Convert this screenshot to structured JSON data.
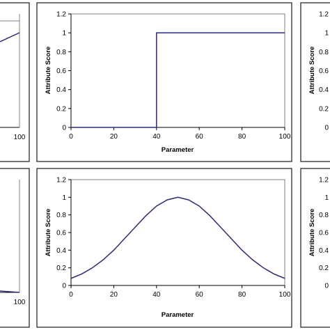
{
  "chart_data": [
    {
      "panel": "top-left (cropped)",
      "type": "line",
      "xlabel": "",
      "ylabel": "",
      "x_ticks": [
        "100"
      ],
      "series": [
        {
          "x": [
            80,
            100
          ],
          "y": [
            0.9,
            1.0
          ]
        }
      ]
    },
    {
      "panel": "top-middle",
      "type": "line",
      "xlabel": "Parameter",
      "ylabel": "Attribute Score",
      "xlim": [
        0,
        100
      ],
      "ylim": [
        0,
        1.2
      ],
      "x_ticks": [
        "0",
        "20",
        "40",
        "60",
        "80",
        "100"
      ],
      "y_ticks": [
        "0",
        "0.2",
        "0.4",
        "0.6",
        "0.8",
        "1",
        "1.2"
      ],
      "series": [
        {
          "x": [
            0,
            40,
            40,
            100
          ],
          "y": [
            0,
            0,
            1,
            1
          ]
        }
      ]
    },
    {
      "panel": "top-right (cropped)",
      "type": "line",
      "ylabel": "Attribute Score",
      "y_ticks": [
        "0",
        "0.2",
        "0.4",
        "0.6",
        "0.8",
        "1",
        "1.2"
      ]
    },
    {
      "panel": "bottom-left (cropped)",
      "type": "line",
      "x_ticks": [
        "100"
      ],
      "series": [
        {
          "x": [
            80,
            100
          ],
          "y": [
            0.02,
            0.0
          ]
        }
      ]
    },
    {
      "panel": "bottom-middle",
      "type": "line",
      "xlabel": "Parameter",
      "ylabel": "Attribute Score",
      "xlim": [
        0,
        100
      ],
      "ylim": [
        0,
        1.2
      ],
      "x_ticks": [
        "0",
        "20",
        "40",
        "60",
        "80",
        "100"
      ],
      "y_ticks": [
        "0",
        "0.2",
        "0.4",
        "0.6",
        "0.8",
        "1",
        "1.2"
      ],
      "series": [
        {
          "x": [
            0,
            5,
            10,
            15,
            20,
            25,
            30,
            35,
            40,
            45,
            50,
            55,
            60,
            65,
            70,
            75,
            80,
            85,
            90,
            95,
            100
          ],
          "y": [
            0.08,
            0.13,
            0.2,
            0.29,
            0.4,
            0.53,
            0.66,
            0.79,
            0.9,
            0.97,
            1.0,
            0.97,
            0.9,
            0.79,
            0.66,
            0.53,
            0.4,
            0.29,
            0.2,
            0.13,
            0.08
          ]
        }
      ]
    },
    {
      "panel": "bottom-right (cropped)",
      "type": "line",
      "ylabel": "Attribute Score",
      "y_ticks": [
        "0",
        "0.2",
        "0.4",
        "0.6",
        "0.8",
        "1",
        "1.2"
      ]
    }
  ]
}
